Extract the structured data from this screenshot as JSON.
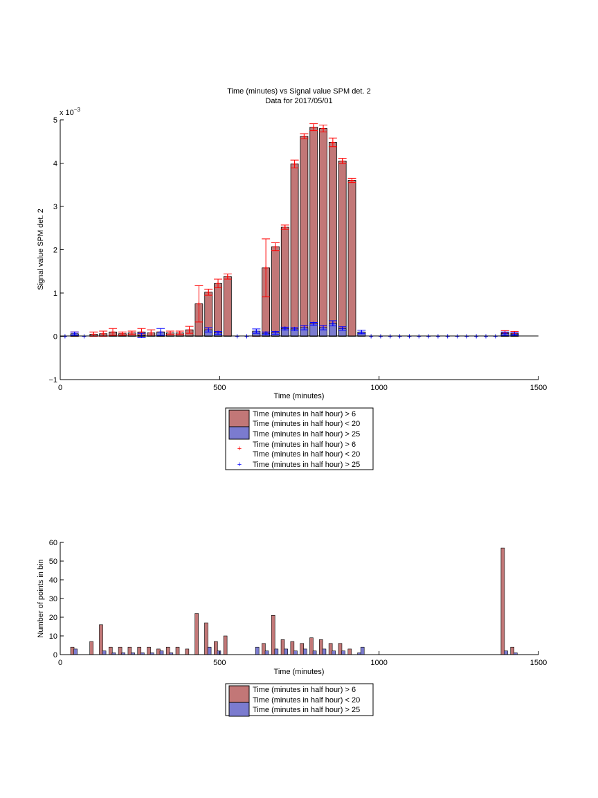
{
  "colors": {
    "red_bar": "#c27777",
    "blue_bar": "#7b7bcf",
    "red_mark": "#ff0000",
    "blue_mark": "#0000ff",
    "axes": "#000000"
  },
  "chart_data": [
    {
      "type": "bar",
      "title": "Time (minutes) vs Signal value SPM det. 2",
      "subtitle": "Data for 2017/05/01",
      "xlabel": "Time (minutes)",
      "ylabel": "Signal value SPM det. 2",
      "y_exponent_label": "x 10",
      "y_exponent_power": "−3",
      "xlim": [
        0,
        1500
      ],
      "ylim": [
        -1,
        5
      ],
      "xticks": [
        "0",
        "500",
        "1000",
        "1500"
      ],
      "yticks": [
        "−1",
        "0",
        "1",
        "2",
        "3",
        "4",
        "5"
      ],
      "grid": false,
      "legend_position": "below",
      "legend": [
        "Time (minutes in half hour) > 6",
        "Time (minutes in half hour) < 20",
        "Time (minutes in half hour) > 25",
        "Time (minutes in half hour) > 6",
        "Time (minutes in half hour) < 20",
        "Time (minutes in half hour) > 25"
      ],
      "series": [
        {
          "kind": "bar",
          "color_key": "red_bar",
          "points": [
            {
              "x": 45,
              "y": 0.05,
              "err": 0.05
            },
            {
              "x": 105,
              "y": 0.05,
              "err": 0.05
            },
            {
              "x": 135,
              "y": 0.06,
              "err": 0.06
            },
            {
              "x": 165,
              "y": 0.1,
              "err": 0.08
            },
            {
              "x": 195,
              "y": 0.06,
              "err": 0.04
            },
            {
              "x": 225,
              "y": 0.08,
              "err": 0.04
            },
            {
              "x": 255,
              "y": 0.1,
              "err": 0.08
            },
            {
              "x": 285,
              "y": 0.08,
              "err": 0.07
            },
            {
              "x": 315,
              "y": 0.06,
              "err": 0.04
            },
            {
              "x": 345,
              "y": 0.08,
              "err": 0.04
            },
            {
              "x": 375,
              "y": 0.08,
              "err": 0.04
            },
            {
              "x": 405,
              "y": 0.15,
              "err": 0.08
            },
            {
              "x": 435,
              "y": 0.75,
              "err": 0.42
            },
            {
              "x": 465,
              "y": 1.02,
              "err": 0.07
            },
            {
              "x": 495,
              "y": 1.22,
              "err": 0.1
            },
            {
              "x": 525,
              "y": 1.38,
              "err": 0.06
            },
            {
              "x": 615,
              "y": 0.05,
              "err": 0.05
            },
            {
              "x": 645,
              "y": 1.58,
              "err": 0.67
            },
            {
              "x": 675,
              "y": 2.07,
              "err": 0.09
            },
            {
              "x": 705,
              "y": 2.52,
              "err": 0.05
            },
            {
              "x": 735,
              "y": 3.98,
              "err": 0.09
            },
            {
              "x": 765,
              "y": 4.62,
              "err": 0.06
            },
            {
              "x": 795,
              "y": 4.83,
              "err": 0.08
            },
            {
              "x": 825,
              "y": 4.8,
              "err": 0.08
            },
            {
              "x": 855,
              "y": 4.48,
              "err": 0.1
            },
            {
              "x": 885,
              "y": 4.05,
              "err": 0.06
            },
            {
              "x": 915,
              "y": 3.6,
              "err": 0.05
            },
            {
              "x": 1395,
              "y": 0.08,
              "err": 0.05
            },
            {
              "x": 1425,
              "y": 0.07,
              "err": 0.04
            }
          ]
        },
        {
          "kind": "bar",
          "color_key": "blue_bar",
          "points": [
            {
              "x": 45,
              "y": 0.06,
              "err": 0.04
            },
            {
              "x": 255,
              "y": 0.02,
              "err": 0.05
            },
            {
              "x": 315,
              "y": 0.1,
              "err": 0.08
            },
            {
              "x": 465,
              "y": 0.15,
              "err": 0.05
            },
            {
              "x": 495,
              "y": 0.08,
              "err": 0.03
            },
            {
              "x": 615,
              "y": 0.12,
              "err": 0.05
            },
            {
              "x": 645,
              "y": 0.07,
              "err": 0.03
            },
            {
              "x": 675,
              "y": 0.08,
              "err": 0.03
            },
            {
              "x": 705,
              "y": 0.18,
              "err": 0.03
            },
            {
              "x": 735,
              "y": 0.17,
              "err": 0.03
            },
            {
              "x": 765,
              "y": 0.2,
              "err": 0.05
            },
            {
              "x": 795,
              "y": 0.29,
              "err": 0.03
            },
            {
              "x": 825,
              "y": 0.2,
              "err": 0.05
            },
            {
              "x": 855,
              "y": 0.3,
              "err": 0.06
            },
            {
              "x": 885,
              "y": 0.18,
              "err": 0.04
            },
            {
              "x": 945,
              "y": 0.1,
              "err": 0.04
            },
            {
              "x": 1395,
              "y": 0.06,
              "err": 0.04
            },
            {
              "x": 1425,
              "y": 0.05,
              "err": 0.03
            }
          ]
        },
        {
          "kind": "marker",
          "color_key": "blue_mark",
          "points": [
            {
              "x": 15,
              "y": 0
            },
            {
              "x": 75,
              "y": 0
            },
            {
              "x": 555,
              "y": 0
            },
            {
              "x": 585,
              "y": 0
            },
            {
              "x": 975,
              "y": 0
            },
            {
              "x": 1005,
              "y": 0
            },
            {
              "x": 1035,
              "y": 0
            },
            {
              "x": 1065,
              "y": 0
            },
            {
              "x": 1095,
              "y": 0
            },
            {
              "x": 1125,
              "y": 0
            },
            {
              "x": 1155,
              "y": 0
            },
            {
              "x": 1185,
              "y": 0
            },
            {
              "x": 1215,
              "y": 0
            },
            {
              "x": 1245,
              "y": 0
            },
            {
              "x": 1275,
              "y": 0
            },
            {
              "x": 1305,
              "y": 0
            },
            {
              "x": 1335,
              "y": 0
            },
            {
              "x": 1365,
              "y": 0
            }
          ]
        }
      ]
    },
    {
      "type": "bar",
      "xlabel": "Time (minutes)",
      "ylabel": "Number of points in bin",
      "xlim": [
        0,
        1500
      ],
      "ylim": [
        0,
        60
      ],
      "xticks": [
        "0",
        "500",
        "1000",
        "1500"
      ],
      "yticks": [
        "0",
        "10",
        "20",
        "30",
        "40",
        "50",
        "60"
      ],
      "grid": false,
      "legend_position": "below",
      "legend": [
        "Time (minutes in half hour) > 6",
        "Time (minutes in half hour) < 20",
        "Time (minutes in half hour) > 25"
      ],
      "series": [
        {
          "color_key": "red_bar",
          "points": [
            {
              "x": 38,
              "y": 4
            },
            {
              "x": 98,
              "y": 7
            },
            {
              "x": 128,
              "y": 16
            },
            {
              "x": 158,
              "y": 4
            },
            {
              "x": 188,
              "y": 4
            },
            {
              "x": 218,
              "y": 4
            },
            {
              "x": 248,
              "y": 4
            },
            {
              "x": 278,
              "y": 4
            },
            {
              "x": 308,
              "y": 3
            },
            {
              "x": 338,
              "y": 4
            },
            {
              "x": 368,
              "y": 4
            },
            {
              "x": 398,
              "y": 3
            },
            {
              "x": 428,
              "y": 22
            },
            {
              "x": 458,
              "y": 17
            },
            {
              "x": 488,
              "y": 7
            },
            {
              "x": 518,
              "y": 10
            },
            {
              "x": 638,
              "y": 6
            },
            {
              "x": 668,
              "y": 21
            },
            {
              "x": 698,
              "y": 8
            },
            {
              "x": 728,
              "y": 7
            },
            {
              "x": 758,
              "y": 6
            },
            {
              "x": 788,
              "y": 9
            },
            {
              "x": 818,
              "y": 8
            },
            {
              "x": 848,
              "y": 6
            },
            {
              "x": 878,
              "y": 6
            },
            {
              "x": 908,
              "y": 3
            },
            {
              "x": 1388,
              "y": 57
            },
            {
              "x": 1418,
              "y": 4
            }
          ]
        },
        {
          "color_key": "blue_bar",
          "points": [
            {
              "x": 48,
              "y": 3
            },
            {
              "x": 138,
              "y": 2
            },
            {
              "x": 168,
              "y": 1
            },
            {
              "x": 198,
              "y": 1
            },
            {
              "x": 228,
              "y": 1
            },
            {
              "x": 258,
              "y": 1
            },
            {
              "x": 288,
              "y": 1
            },
            {
              "x": 318,
              "y": 2
            },
            {
              "x": 348,
              "y": 1
            },
            {
              "x": 468,
              "y": 4
            },
            {
              "x": 498,
              "y": 2
            },
            {
              "x": 618,
              "y": 4
            },
            {
              "x": 648,
              "y": 2
            },
            {
              "x": 678,
              "y": 3
            },
            {
              "x": 708,
              "y": 3
            },
            {
              "x": 738,
              "y": 2
            },
            {
              "x": 768,
              "y": 3
            },
            {
              "x": 798,
              "y": 2
            },
            {
              "x": 828,
              "y": 3
            },
            {
              "x": 858,
              "y": 2
            },
            {
              "x": 888,
              "y": 2
            },
            {
              "x": 938,
              "y": 1
            },
            {
              "x": 948,
              "y": 4
            },
            {
              "x": 1398,
              "y": 2
            },
            {
              "x": 1428,
              "y": 1
            }
          ]
        }
      ]
    }
  ]
}
